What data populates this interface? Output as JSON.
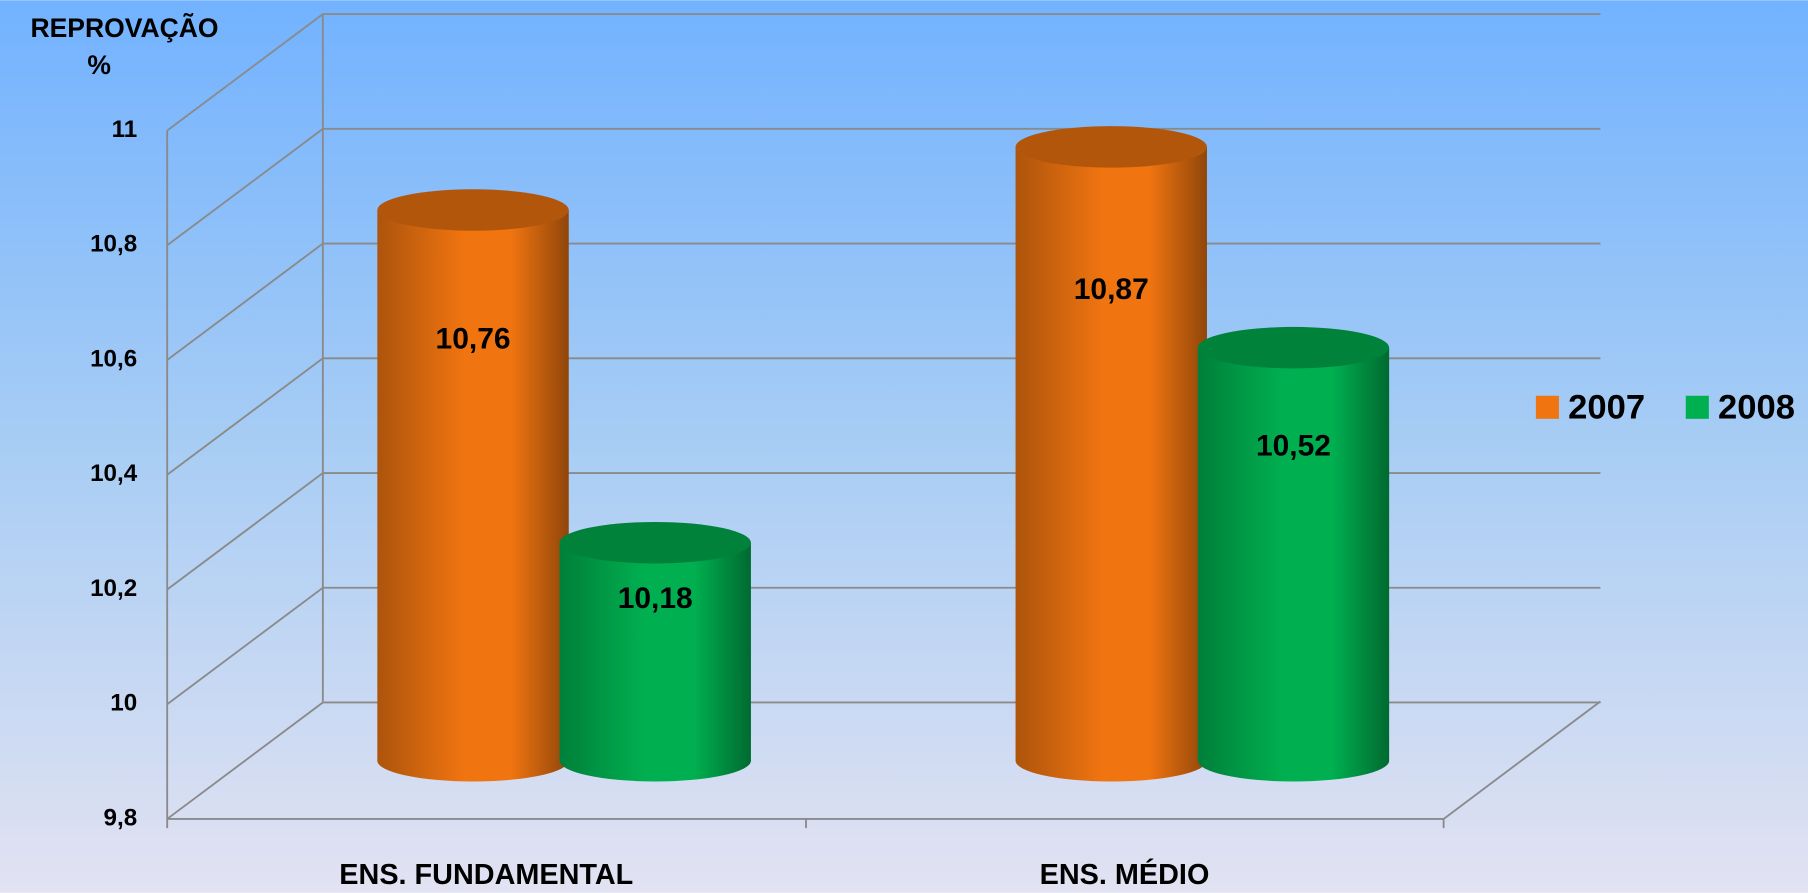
{
  "chart_data": {
    "type": "bar3d",
    "ylabel": [
      "REPROVAÇÃO",
      "%"
    ],
    "categories": [
      "ENS. FUNDAMENTAL",
      "ENS. MÉDIO"
    ],
    "series": [
      {
        "name": "2007",
        "color": "#f07410",
        "values": [
          10.76,
          10.87
        ],
        "value_labels": [
          "10,76",
          "10,87"
        ]
      },
      {
        "name": "2008",
        "color": "#00b050",
        "values": [
          10.18,
          10.52
        ],
        "value_labels": [
          "10,18",
          "10,52"
        ]
      }
    ],
    "ylim": [
      9.8,
      11
    ],
    "yticks": [
      {
        "value": 9.8,
        "label": "9,8"
      },
      10,
      {
        "value": 10.2,
        "label": "10,2"
      },
      {
        "value": 10.4,
        "label": "10,4"
      },
      {
        "value": 10.6,
        "label": "10,6"
      },
      {
        "value": 10.8,
        "label": "10,8"
      },
      11
    ],
    "grid": true,
    "legend": "right"
  }
}
